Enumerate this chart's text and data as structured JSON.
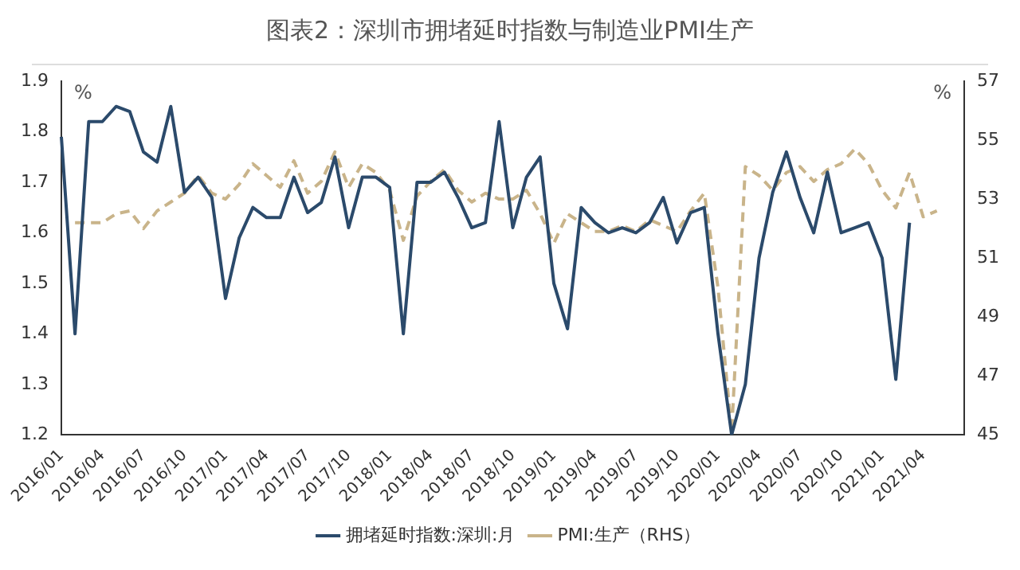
{
  "chart_data": {
    "type": "line",
    "title": "图表2：深圳市拥堵延时指数与制造业PMI生产",
    "ylabel": "%",
    "y2label": "%",
    "categories": [
      "2016/01",
      null,
      null,
      "2016/04",
      null,
      null,
      "2016/07",
      null,
      null,
      "2016/10",
      null,
      null,
      "2017/01",
      null,
      null,
      "2017/04",
      null,
      null,
      "2017/07",
      null,
      null,
      "2017/10",
      null,
      null,
      "2018/01",
      null,
      null,
      "2018/04",
      null,
      null,
      "2018/07",
      null,
      null,
      "2018/10",
      null,
      null,
      "2019/01",
      null,
      null,
      "2019/04",
      null,
      null,
      "2019/07",
      null,
      null,
      "2019/10",
      null,
      null,
      "2020/01",
      null,
      null,
      "2020/04",
      null,
      null,
      "2020/07",
      null,
      null,
      "2020/10",
      null,
      null,
      "2021/01",
      null,
      null,
      "2021/04",
      null,
      null,
      null
    ],
    "series": [
      {
        "name": "拥堵延时指数:深圳:月",
        "color": "#2b4a6b",
        "line_style": "solid",
        "values": [
          1.79,
          1.4,
          1.82,
          1.82,
          1.85,
          1.84,
          1.76,
          1.74,
          1.85,
          1.68,
          1.71,
          1.67,
          1.47,
          1.59,
          1.65,
          1.63,
          1.63,
          1.71,
          1.64,
          1.66,
          1.75,
          1.61,
          1.71,
          1.71,
          1.69,
          1.4,
          1.7,
          1.7,
          1.72,
          1.67,
          1.61,
          1.62,
          1.82,
          1.61,
          1.71,
          1.75,
          1.5,
          1.41,
          1.65,
          1.62,
          1.6,
          1.61,
          1.6,
          1.62,
          1.67,
          1.58,
          1.64,
          1.65,
          1.4,
          1.2,
          1.3,
          1.55,
          1.68,
          1.76,
          1.67,
          1.6,
          1.72,
          1.6,
          1.61,
          1.62,
          1.55,
          1.31,
          1.62,
          null,
          null,
          null,
          null
        ]
      },
      {
        "name": "PMI:生产（RHS）",
        "color": "#c9b48a",
        "line_style": "dashed",
        "axis": "y2",
        "values": [
          null,
          52.2,
          52.2,
          52.2,
          52.5,
          52.6,
          52.0,
          52.6,
          52.9,
          53.2,
          53.8,
          53.2,
          53.0,
          53.5,
          54.2,
          53.8,
          53.4,
          54.3,
          53.2,
          53.6,
          54.6,
          53.4,
          54.2,
          53.9,
          53.3,
          51.6,
          53.1,
          53.6,
          54.0,
          53.3,
          52.9,
          53.2,
          53.0,
          53.0,
          53.3,
          52.5,
          51.5,
          52.5,
          52.2,
          51.9,
          51.9,
          52.1,
          51.9,
          52.3,
          52.1,
          51.9,
          52.6,
          53.2,
          50.0,
          45.1,
          54.1,
          53.8,
          53.3,
          53.9,
          54.1,
          53.6,
          54.0,
          54.2,
          54.7,
          54.2,
          53.3,
          52.7,
          53.9,
          52.4,
          52.6,
          null,
          null
        ]
      }
    ],
    "ylim": [
      1.2,
      1.9
    ],
    "yticks": [
      1.2,
      1.3,
      1.4,
      1.5,
      1.6,
      1.7,
      1.8,
      1.9
    ],
    "y2lim": [
      45,
      57
    ],
    "y2ticks": [
      45,
      47,
      49,
      51,
      53,
      55,
      57
    ],
    "grid": false,
    "legend": "bottom",
    "marker": "none"
  }
}
